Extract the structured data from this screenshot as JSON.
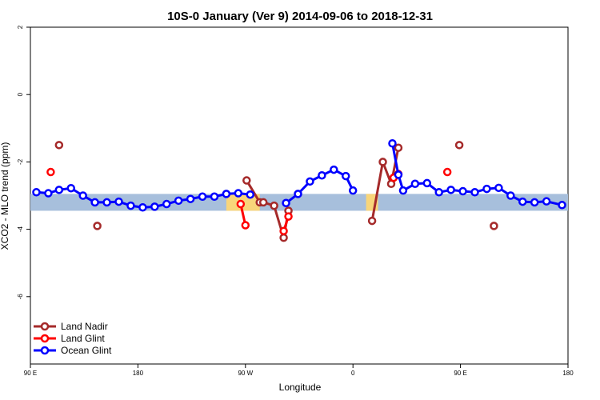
{
  "chart_data": {
    "type": "line",
    "title": "10S-0 January (Ver 9)   2014-09-06 to 2018-12-31",
    "xlabel": "Longitude",
    "ylabel": "XCO2 - MLO trend (ppm)",
    "xlim": [
      90,
      540
    ],
    "ylim": [
      -8,
      2
    ],
    "x_ticks": [
      {
        "value": 90,
        "label": "90 E"
      },
      {
        "value": 180,
        "label": "180"
      },
      {
        "value": 270,
        "label": "90 W"
      },
      {
        "value": 360,
        "label": "0"
      },
      {
        "value": 450,
        "label": "90 E"
      },
      {
        "value": 540,
        "label": "180"
      }
    ],
    "y_ticks": [
      {
        "value": 2,
        "label": "2"
      },
      {
        "value": 0,
        "label": "0"
      },
      {
        "value": -2,
        "label": "-2"
      },
      {
        "value": -4,
        "label": "-4"
      },
      {
        "value": -6,
        "label": "-6"
      }
    ],
    "band": {
      "ymin": -3.45,
      "ymax": -2.95,
      "color": "#a7bfdc",
      "land_color": "#f8d57a"
    },
    "land_segments": [
      [
        254,
        282
      ],
      [
        371,
        381
      ]
    ],
    "series": [
      {
        "name": "Land Nadir",
        "color": "#a52a2a",
        "segments": [
          [
            [
              114,
              -1.5
            ]
          ],
          [
            [
              146,
              -3.9
            ]
          ],
          [
            [
              271,
              -2.55
            ],
            [
              282,
              -3.2
            ],
            [
              285,
              -3.2
            ],
            [
              294,
              -3.3
            ],
            [
              302,
              -4.25
            ],
            [
              306,
              -3.45
            ]
          ],
          [
            [
              376,
              -3.75
            ],
            [
              385,
              -2.0
            ],
            [
              392,
              -2.65
            ],
            [
              398,
              -1.58
            ]
          ],
          [
            [
              449,
              -1.5
            ]
          ],
          [
            [
              478,
              -3.9
            ]
          ]
        ]
      },
      {
        "name": "Land Glint",
        "color": "#ff0000",
        "segments": [
          [
            [
              107,
              -2.3
            ]
          ],
          [
            [
              266,
              -3.25
            ],
            [
              270,
              -3.88
            ]
          ],
          [
            [
              302,
              -4.05
            ],
            [
              306,
              -3.62
            ]
          ],
          [
            [
              394,
              -2.47
            ],
            [
              398,
              -2.36
            ]
          ],
          [
            [
              439,
              -2.3
            ]
          ]
        ]
      },
      {
        "name": "Ocean Glint",
        "color": "#0000ff",
        "segments": [
          [
            [
              95,
              -2.9
            ],
            [
              105,
              -2.93
            ],
            [
              114,
              -2.83
            ],
            [
              124,
              -2.78
            ],
            [
              134,
              -3.0
            ],
            [
              144,
              -3.2
            ],
            [
              154,
              -3.2
            ],
            [
              164,
              -3.18
            ],
            [
              174,
              -3.3
            ],
            [
              184,
              -3.35
            ],
            [
              194,
              -3.33
            ],
            [
              204,
              -3.25
            ],
            [
              214,
              -3.15
            ],
            [
              224,
              -3.1
            ],
            [
              234,
              -3.03
            ],
            [
              244,
              -3.03
            ],
            [
              254,
              -2.95
            ],
            [
              264,
              -2.93
            ],
            [
              274,
              -2.97
            ]
          ],
          [
            [
              304,
              -3.22
            ],
            [
              314,
              -2.95
            ],
            [
              324,
              -2.58
            ],
            [
              334,
              -2.4
            ],
            [
              344,
              -2.23
            ],
            [
              354,
              -2.42
            ],
            [
              360,
              -2.85
            ]
          ],
          [
            [
              393,
              -1.45
            ],
            [
              398,
              -2.38
            ],
            [
              402,
              -2.85
            ],
            [
              412,
              -2.65
            ],
            [
              422,
              -2.63
            ],
            [
              432,
              -2.9
            ],
            [
              442,
              -2.83
            ],
            [
              452,
              -2.87
            ],
            [
              462,
              -2.9
            ],
            [
              472,
              -2.8
            ],
            [
              482,
              -2.77
            ],
            [
              492,
              -3.0
            ],
            [
              502,
              -3.18
            ],
            [
              512,
              -3.2
            ],
            [
              522,
              -3.17
            ],
            [
              535,
              -3.28
            ]
          ]
        ]
      }
    ],
    "legend": {
      "position": "bottom-left"
    }
  }
}
